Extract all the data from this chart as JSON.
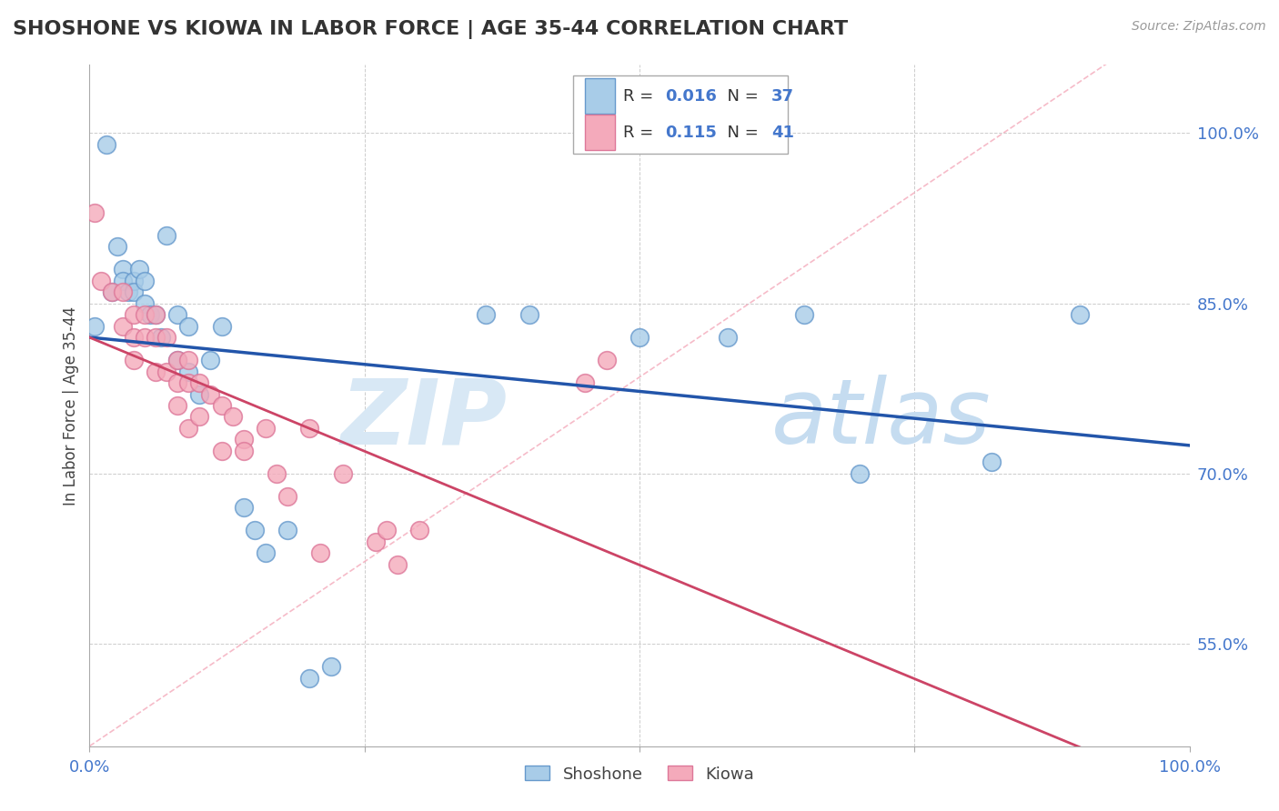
{
  "title": "SHOSHONE VS KIOWA IN LABOR FORCE | AGE 35-44 CORRELATION CHART",
  "source_text": "Source: ZipAtlas.com",
  "ylabel": "In Labor Force | Age 35-44",
  "xlim": [
    0.0,
    1.0
  ],
  "ylim": [
    0.46,
    1.06
  ],
  "xticks": [
    0.0,
    0.25,
    0.5,
    0.75,
    1.0
  ],
  "xticklabels": [
    "0.0%",
    "",
    "",
    "",
    "100.0%"
  ],
  "ytick_positions": [
    0.55,
    0.7,
    0.85,
    1.0
  ],
  "ytick_labels": [
    "55.0%",
    "70.0%",
    "85.0%",
    "100.0%"
  ],
  "shoshone_color": "#A8CCE8",
  "kiowa_color": "#F4AABB",
  "shoshone_edge": "#6699CC",
  "kiowa_edge": "#DD7799",
  "trend_blue": "#2255AA",
  "trend_pink": "#CC4466",
  "legend_R_shoshone": "0.016",
  "legend_N_shoshone": "37",
  "legend_R_kiowa": "0.115",
  "legend_N_kiowa": "41",
  "shoshone_x": [
    0.005,
    0.015,
    0.02,
    0.025,
    0.03,
    0.03,
    0.035,
    0.04,
    0.04,
    0.045,
    0.05,
    0.05,
    0.055,
    0.06,
    0.065,
    0.07,
    0.08,
    0.08,
    0.09,
    0.09,
    0.1,
    0.11,
    0.12,
    0.14,
    0.15,
    0.16,
    0.18,
    0.2,
    0.22,
    0.36,
    0.4,
    0.5,
    0.58,
    0.65,
    0.7,
    0.82,
    0.9
  ],
  "shoshone_y": [
    0.83,
    0.99,
    0.86,
    0.9,
    0.88,
    0.87,
    0.86,
    0.87,
    0.86,
    0.88,
    0.87,
    0.85,
    0.84,
    0.84,
    0.82,
    0.91,
    0.84,
    0.8,
    0.83,
    0.79,
    0.77,
    0.8,
    0.83,
    0.67,
    0.65,
    0.63,
    0.65,
    0.52,
    0.53,
    0.84,
    0.84,
    0.82,
    0.82,
    0.84,
    0.7,
    0.71,
    0.84
  ],
  "kiowa_x": [
    0.005,
    0.01,
    0.02,
    0.03,
    0.03,
    0.04,
    0.04,
    0.04,
    0.05,
    0.05,
    0.06,
    0.06,
    0.06,
    0.07,
    0.07,
    0.08,
    0.08,
    0.08,
    0.09,
    0.09,
    0.09,
    0.1,
    0.1,
    0.11,
    0.12,
    0.12,
    0.13,
    0.14,
    0.14,
    0.16,
    0.17,
    0.18,
    0.2,
    0.21,
    0.23,
    0.26,
    0.27,
    0.28,
    0.3,
    0.45,
    0.47
  ],
  "kiowa_y": [
    0.93,
    0.87,
    0.86,
    0.86,
    0.83,
    0.84,
    0.82,
    0.8,
    0.84,
    0.82,
    0.84,
    0.82,
    0.79,
    0.82,
    0.79,
    0.8,
    0.78,
    0.76,
    0.8,
    0.78,
    0.74,
    0.78,
    0.75,
    0.77,
    0.76,
    0.72,
    0.75,
    0.73,
    0.72,
    0.74,
    0.7,
    0.68,
    0.74,
    0.63,
    0.7,
    0.64,
    0.65,
    0.62,
    0.65,
    0.78,
    0.8
  ],
  "background_color": "#FFFFFF",
  "grid_color": "#CCCCCC",
  "diag_line_color": "#F4AABB",
  "watermark_zip_color": "#D8E8F5",
  "watermark_atlas_color": "#C5DCF0"
}
